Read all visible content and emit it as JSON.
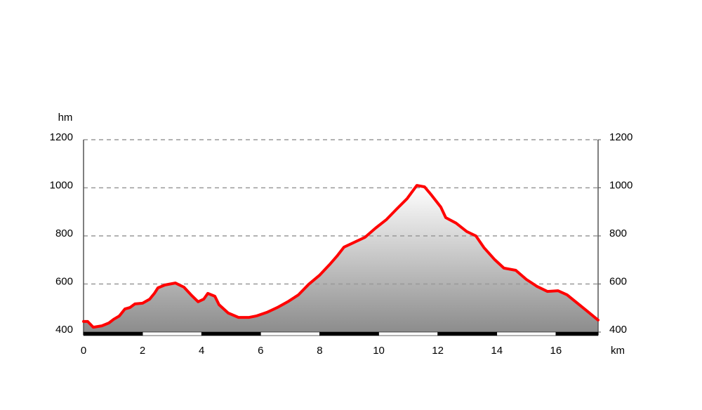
{
  "chart_data": {
    "type": "area",
    "x_label": "km",
    "y_label": "hm",
    "color": "#ff0000",
    "x": [
      0,
      0.14,
      0.33,
      0.62,
      0.86,
      1.02,
      1.21,
      1.4,
      1.57,
      1.74,
      2.0,
      2.24,
      2.4,
      2.52,
      2.76,
      3.11,
      3.4,
      3.64,
      3.88,
      4.07,
      4.21,
      4.45,
      4.59,
      4.9,
      5.25,
      5.61,
      5.85,
      6.21,
      6.56,
      6.92,
      7.28,
      7.63,
      7.99,
      8.35,
      8.58,
      8.82,
      9.18,
      9.53,
      9.89,
      10.25,
      10.6,
      10.96,
      11.29,
      11.55,
      11.79,
      12.1,
      12.27,
      12.62,
      12.98,
      13.29,
      13.57,
      13.93,
      14.24,
      14.64,
      15.0,
      15.36,
      15.71,
      16.07,
      16.38,
      16.67,
      17.02,
      17.43
    ],
    "values": [
      444,
      444,
      420,
      426,
      438,
      453,
      467,
      496,
      502,
      517,
      520,
      537,
      561,
      584,
      596,
      604,
      587,
      555,
      526,
      537,
      561,
      549,
      514,
      479,
      461,
      461,
      467,
      482,
      502,
      526,
      555,
      599,
      636,
      683,
      715,
      753,
      774,
      794,
      832,
      867,
      911,
      955,
      1010,
      1004,
      969,
      920,
      876,
      853,
      818,
      800,
      750,
      701,
      666,
      657,
      619,
      590,
      569,
      572,
      555,
      526,
      491,
      450
    ],
    "xlim": [
      0,
      17.43
    ],
    "ylim": [
      400,
      1200
    ],
    "xticks": [
      0,
      2,
      4,
      6,
      8,
      10,
      12,
      14,
      16
    ],
    "yticks": [
      400,
      600,
      800,
      1000,
      1200
    ],
    "y2lim": [
      400,
      1200
    ],
    "y2ticks": [
      400,
      600,
      800,
      1000,
      1200
    ],
    "grid": true
  }
}
